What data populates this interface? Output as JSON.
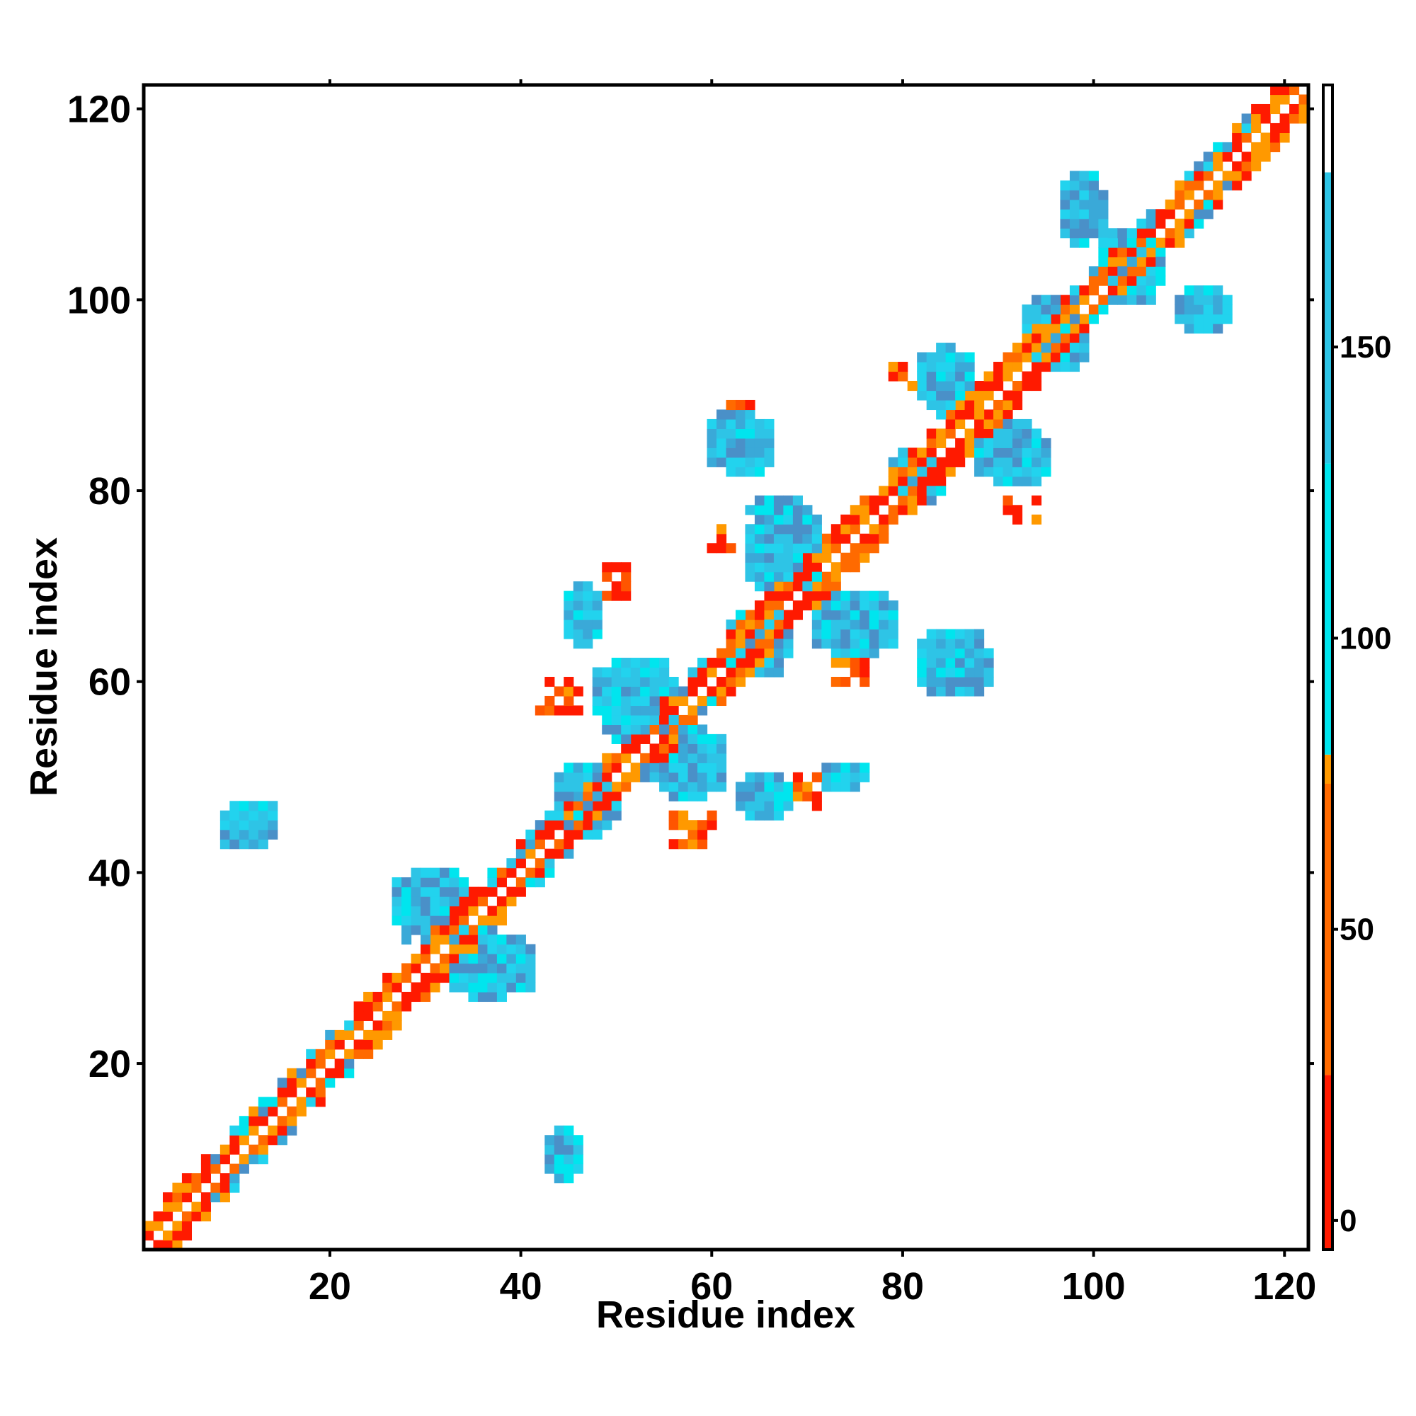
{
  "chart_data": {
    "type": "heatmap",
    "title": "",
    "xlabel": "Residue index",
    "ylabel": "Residue index",
    "xlim": [
      1,
      122
    ],
    "ylim": [
      1,
      122
    ],
    "x_ticks": [
      20,
      40,
      60,
      80,
      100,
      120
    ],
    "y_ticks": [
      20,
      40,
      60,
      80,
      100,
      120
    ],
    "grid": false,
    "colorbar": {
      "ticks": [
        0,
        50,
        100,
        150
      ],
      "range": [
        -5,
        195
      ],
      "bins": [
        {
          "from": -5,
          "to": 25,
          "color": "#ff1a00"
        },
        {
          "from": 25,
          "to": 75,
          "color": "#ff6a00"
        },
        {
          "from": 75,
          "to": 80,
          "color": "#ff9900"
        },
        {
          "from": 80,
          "to": 130,
          "color": "#00e5ee"
        },
        {
          "from": 130,
          "to": 180,
          "color": "#2ec4e6"
        },
        {
          "from": 180,
          "to": 195,
          "color": "#ffffff"
        }
      ]
    },
    "regions": [
      {
        "kind": "diagonal_band",
        "from": 1,
        "to": 122,
        "width": 3,
        "palette": [
          "#ff1a00",
          "#ff6a00",
          "#ff9900"
        ],
        "mix_cyan_ranges": [
          [
            8,
            22
          ],
          [
            36,
            48
          ],
          [
            52,
            60
          ],
          [
            96,
            108
          ],
          [
            110,
            116
          ]
        ]
      },
      {
        "kind": "blob",
        "x": [
          9,
          14
        ],
        "y": [
          43,
          47
        ],
        "values": 140
      },
      {
        "kind": "blob",
        "x": [
          27,
          34
        ],
        "y": [
          33,
          40
        ],
        "values": 145
      },
      {
        "kind": "blob",
        "x": [
          33,
          41
        ],
        "y": [
          27,
          33
        ],
        "values": 145
      },
      {
        "kind": "blob",
        "x": [
          44,
          50
        ],
        "y": [
          44,
          51
        ],
        "values": 140
      },
      {
        "kind": "blob",
        "x": [
          48,
          56
        ],
        "y": [
          54,
          62
        ],
        "values": 140
      },
      {
        "kind": "blob",
        "x": [
          54,
          61
        ],
        "y": [
          48,
          55
        ],
        "values": 140
      },
      {
        "kind": "blob",
        "x": [
          62,
          68
        ],
        "y": [
          61,
          67
        ],
        "values": 140
      },
      {
        "kind": "blob",
        "x": [
          64,
          71
        ],
        "y": [
          70,
          79
        ],
        "values": 140
      },
      {
        "kind": "blob",
        "x": [
          71,
          79
        ],
        "y": [
          63,
          69
        ],
        "values": 140
      },
      {
        "kind": "blob",
        "x": [
          60,
          66
        ],
        "y": [
          82,
          88
        ],
        "values": 140
      },
      {
        "kind": "blob",
        "x": [
          79,
          84
        ],
        "y": [
          79,
          84
        ],
        "values": 140
      },
      {
        "kind": "blob",
        "x": [
          82,
          87
        ],
        "y": [
          88,
          95
        ],
        "values": 140
      },
      {
        "kind": "blob",
        "x": [
          88,
          95
        ],
        "y": [
          81,
          87
        ],
        "values": 140
      },
      {
        "kind": "blob",
        "x": [
          82,
          89
        ],
        "y": [
          59,
          65
        ],
        "values": 140
      },
      {
        "kind": "blob",
        "x": [
          93,
          99
        ],
        "y": [
          93,
          100
        ],
        "values": 145
      },
      {
        "kind": "blob",
        "x": [
          97,
          101
        ],
        "y": [
          106,
          113
        ],
        "values": 135
      },
      {
        "kind": "blob",
        "x": [
          109,
          114
        ],
        "y": [
          97,
          101
        ],
        "values": 125
      },
      {
        "kind": "blob",
        "x": [
          101,
          107
        ],
        "y": [
          100,
          107
        ],
        "values": 130
      },
      {
        "kind": "blob",
        "x": [
          43,
          46
        ],
        "y": [
          8,
          13
        ],
        "values": 140
      },
      {
        "kind": "blob",
        "x": [
          45,
          48
        ],
        "y": [
          64,
          70
        ],
        "values": 130
      },
      {
        "kind": "blob",
        "x": [
          63,
          68
        ],
        "y": [
          46,
          50
        ],
        "values": 115
      },
      {
        "kind": "blob",
        "x": [
          72,
          76
        ],
        "y": [
          49,
          51
        ],
        "values": 95
      },
      {
        "kind": "red_blob",
        "x": [
          42,
          46
        ],
        "y": [
          57,
          60
        ]
      },
      {
        "kind": "red_blob",
        "x": [
          56,
          60
        ],
        "y": [
          43,
          46
        ]
      },
      {
        "kind": "red_blob",
        "x": [
          73,
          76
        ],
        "y": [
          60,
          62
        ]
      },
      {
        "kind": "red_blob",
        "x": [
          60,
          62
        ],
        "y": [
          74,
          76
        ]
      },
      {
        "kind": "red_blob",
        "x": [
          87,
          89
        ],
        "y": [
          86,
          88
        ]
      },
      {
        "kind": "red_blob",
        "x": [
          79,
          81
        ],
        "y": [
          91,
          93
        ]
      },
      {
        "kind": "red_blob",
        "x": [
          91,
          94
        ],
        "y": [
          77,
          79
        ]
      },
      {
        "kind": "red_blob",
        "x": [
          69,
          72
        ],
        "y": [
          47,
          50
        ]
      },
      {
        "kind": "red_blob",
        "x": [
          49,
          51
        ],
        "y": [
          69,
          72
        ]
      },
      {
        "kind": "red_blob",
        "x": [
          61,
          64
        ],
        "y": [
          87,
          89
        ]
      }
    ]
  }
}
